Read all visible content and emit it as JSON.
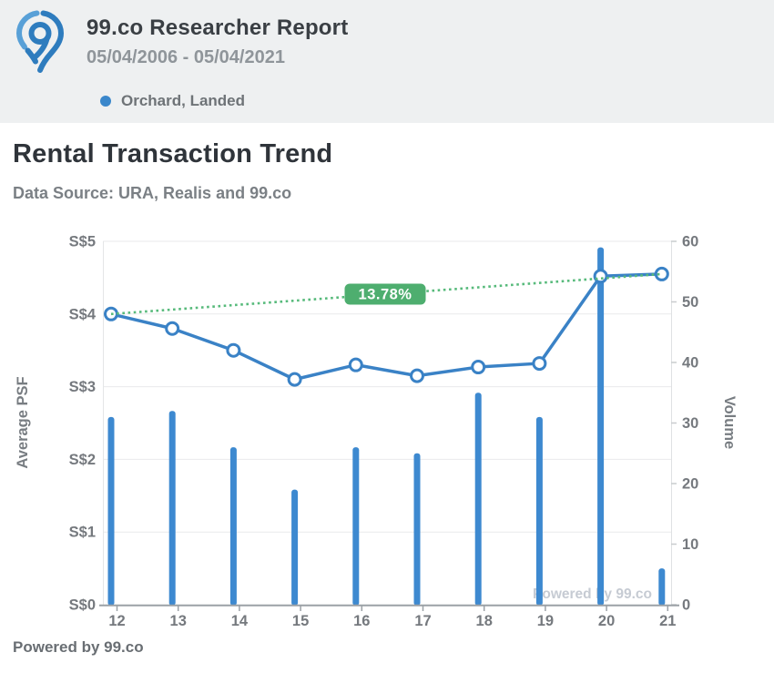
{
  "header": {
    "title": "99.co Researcher Report",
    "date_range": "05/04/2006 - 05/04/2021",
    "legend_label": "Orchard, Landed",
    "legend_color": "#3a87cb",
    "band_color": "#eef0f1",
    "logo_color": "#2e7cbe",
    "logo_color_light": "#58a0d7"
  },
  "section": {
    "title": "Rental Transaction Trend",
    "subtitle": "Data Source: URA, Realis and 99.co"
  },
  "footer": {
    "powered_by": "Powered by 99.co"
  },
  "chart_data": {
    "type": "line+bar",
    "title": "Rental Transaction Trend",
    "categories": [
      "12",
      "13",
      "14",
      "15",
      "16",
      "17",
      "18",
      "19",
      "20",
      "21"
    ],
    "series": [
      {
        "name": "Average PSF",
        "type": "line",
        "axis": "left",
        "values": [
          4.0,
          3.8,
          3.5,
          3.1,
          3.3,
          3.15,
          3.27,
          3.32,
          4.52,
          4.55
        ],
        "color": "#3a82c6",
        "marker": "open-circle"
      },
      {
        "name": "Volume",
        "type": "bar",
        "axis": "right",
        "values": [
          31,
          32,
          26,
          19,
          26,
          25,
          35,
          31,
          59,
          6
        ],
        "color": "#3d89d0"
      }
    ],
    "trend": {
      "label": "13.78%",
      "from_index": 0,
      "to_index": 9,
      "line_color": "#57ba7b",
      "label_bg": "#4eae6f",
      "label_text_color": "#ffffff"
    },
    "left_axis": {
      "title": "Average PSF",
      "tick_labels": [
        "S$0",
        "S$1",
        "S$2",
        "S$3",
        "S$4",
        "S$5"
      ],
      "min": 0,
      "max": 5
    },
    "right_axis": {
      "title": "Volume",
      "tick_labels": [
        "0",
        "10",
        "20",
        "30",
        "40",
        "50",
        "60"
      ],
      "min": 0,
      "max": 60
    },
    "grid": true,
    "watermark": "Powered by 99.co",
    "tick_label_color": "#75797e",
    "grid_color": "#e9eaeb",
    "axis_line_color": "#9ba1a6",
    "watermark_color": "#c6cbd3"
  }
}
